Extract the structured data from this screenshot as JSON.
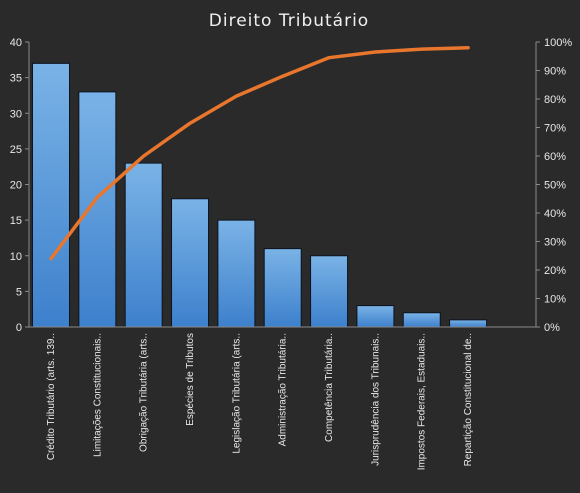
{
  "chart_data": {
    "type": "bar",
    "title": "Direito Tributário",
    "categories": [
      "Crédito Tributário (arts. 139..",
      "Limitações Constitucionais..",
      "Obrigação Tributária (arts..",
      "Espécies de Tributos",
      "Legislação Tributária (arts..",
      "Administração Tributária..",
      "Competência Tributária..",
      "Jurisprudência dos Tribunais..",
      "Impostos Federais, Estaduais..",
      "Repartição Constitucional de.."
    ],
    "series": [
      {
        "type": "bar",
        "values": [
          37,
          33,
          23,
          18,
          15,
          11,
          10,
          3,
          2,
          1
        ]
      },
      {
        "type": "line",
        "axis": "secondary",
        "values": [
          24,
          45.5,
          60,
          71.5,
          81,
          88,
          94.5,
          96.5,
          97.5,
          98
        ]
      }
    ],
    "y_ticks": [
      "0",
      "5",
      "10",
      "15",
      "20",
      "25",
      "30",
      "35",
      "40"
    ],
    "y2_ticks": [
      "0%",
      "10%",
      "20%",
      "30%",
      "40%",
      "50%",
      "60%",
      "70%",
      "80%",
      "90%",
      "100%"
    ],
    "ylim": [
      0,
      40
    ],
    "y2lim": [
      0,
      100
    ],
    "grid": false,
    "legend": "none",
    "colors": {
      "background": "#2a2a2a",
      "bar_top": "#7ab3e6",
      "bar_bottom": "#3d80cc",
      "bar_edge": "#0c1420",
      "line": "#e8762d",
      "axis": "#8a8a8a",
      "text": "#e8e8e8"
    }
  }
}
